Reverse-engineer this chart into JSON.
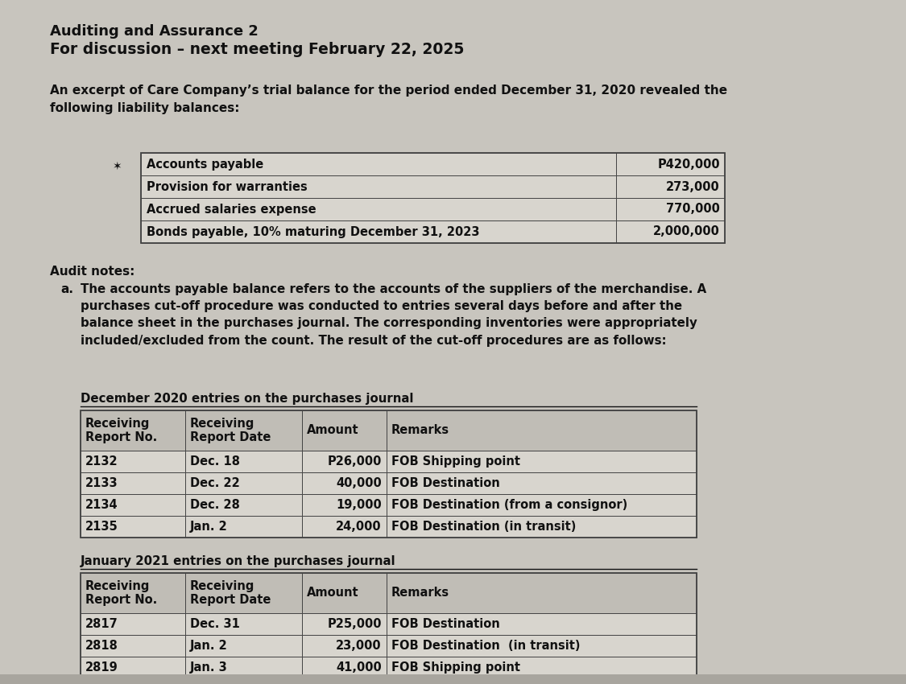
{
  "background_color": "#c8c5be",
  "title1": "Auditing and Assurance 2",
  "title2": "For discussion – next meeting February 22, 2025",
  "intro": "An excerpt of Care Company’s trial balance for the period ended December 31, 2020 revealed the\nfollowing liability balances:",
  "liability_rows": [
    [
      "Accounts payable",
      "P420,000"
    ],
    [
      "Provision for warranties",
      "273,000"
    ],
    [
      "Accrued salaries expense",
      "770,000"
    ],
    [
      "Bonds payable, 10% maturing December 31, 2023",
      "2,000,000"
    ]
  ],
  "audit_notes_label": "Audit notes:",
  "audit_note_a": "The accounts payable balance refers to the accounts of the suppliers of the merchandise. A\npurchases cut-off procedure was conducted to entries several days before and after the\nbalance sheet in the purchases journal. The corresponding inventories were appropriately\nincluded/excluded from the count. The result of the cut-off procedures are as follows:",
  "dec_table_title": "December 2020 entries on the purchases journal",
  "dec_table_headers": [
    "Receiving\nReport No.",
    "Receiving\nReport Date",
    "Amount",
    "Remarks"
  ],
  "dec_table_rows": [
    [
      "2132",
      "Dec. 18",
      "P26,000",
      "FOB Shipping point"
    ],
    [
      "2133",
      "Dec. 22",
      "40,000",
      "FOB Destination"
    ],
    [
      "2134",
      "Dec. 28",
      "19,000",
      "FOB Destination (from a consignor)"
    ],
    [
      "2135",
      "Jan. 2",
      "24,000",
      "FOB Destination (in transit)"
    ]
  ],
  "jan_table_title": "January 2021 entries on the purchases journal",
  "jan_table_headers": [
    "Receiving\nReport No.",
    "Receiving\nReport Date",
    "Amount",
    "Remarks"
  ],
  "jan_table_rows": [
    [
      "2817",
      "Dec. 31",
      "P25,000",
      "FOB Destination"
    ],
    [
      "2818",
      "Jan. 2",
      "23,000",
      "FOB Destination  (in transit)"
    ],
    [
      "2819",
      "Jan. 3",
      "41,000",
      "FOB Shipping point"
    ]
  ],
  "text_color": "#111111",
  "table_row_bg": "#d8d5ce",
  "table_header_bg": "#c0bdb6",
  "table_border_color": "#444444"
}
